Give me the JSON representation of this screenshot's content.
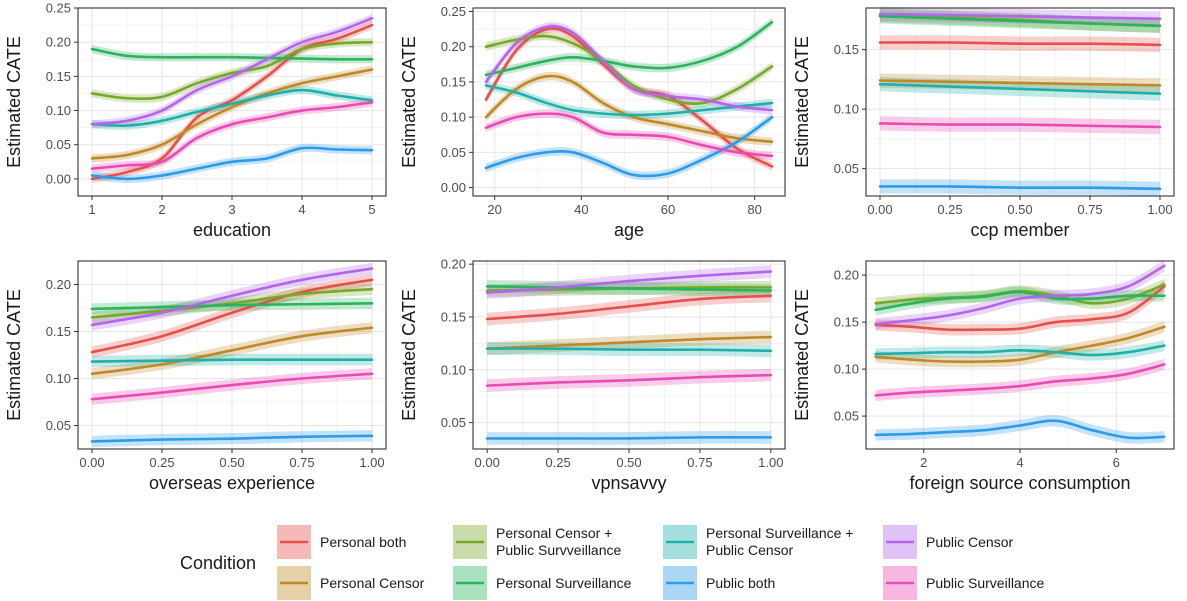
{
  "legend": {
    "title": "Condition",
    "entries": [
      {
        "key": "pb",
        "lines": [
          "Personal both"
        ],
        "color": "#E5514A"
      },
      {
        "key": "pc",
        "lines": [
          "Personal Censor"
        ],
        "color": "#BE8A26"
      },
      {
        "key": "pcps",
        "lines": [
          "Personal Censor +",
          "Public Survveillance"
        ],
        "color": "#77A82A"
      },
      {
        "key": "ps",
        "lines": [
          "Personal Surveillance"
        ],
        "color": "#2BB35E"
      },
      {
        "key": "psc",
        "lines": [
          "Personal Surveillance +",
          "Public Censor"
        ],
        "color": "#1FB0A9"
      },
      {
        "key": "pub",
        "lines": [
          "Public both"
        ],
        "color": "#2C9BE8"
      },
      {
        "key": "pubc",
        "lines": [
          "Public Censor"
        ],
        "color": "#B266EA"
      },
      {
        "key": "pubs",
        "lines": [
          "Public Surveillance"
        ],
        "color": "#EA4BB3"
      }
    ]
  },
  "chart_data": [
    {
      "type": "line",
      "xlabel": "education",
      "ylabel": "Estimated CATE",
      "xlim": [
        0.8,
        5.2
      ],
      "ylim": [
        -0.025,
        0.25
      ],
      "xticks": [
        1,
        2,
        3,
        4,
        5
      ],
      "yticks": [
        0.0,
        0.05,
        0.1,
        0.15,
        0.2,
        0.25
      ],
      "yticklabels": [
        "0.00",
        "0.05",
        "0.10",
        "0.15",
        "0.20",
        "0.25"
      ],
      "xticklabels": [
        "1",
        "2",
        "3",
        "4",
        "5"
      ],
      "x": [
        1,
        1.5,
        2,
        2.5,
        3,
        3.5,
        4,
        4.5,
        5
      ],
      "series": [
        {
          "key": "pb",
          "values": [
            0.0,
            0.01,
            0.03,
            0.09,
            0.115,
            0.15,
            0.19,
            0.205,
            0.225
          ]
        },
        {
          "key": "pc",
          "values": [
            0.03,
            0.035,
            0.05,
            0.08,
            0.105,
            0.125,
            0.14,
            0.15,
            0.16
          ]
        },
        {
          "key": "pcps",
          "values": [
            0.125,
            0.118,
            0.12,
            0.14,
            0.155,
            0.165,
            0.19,
            0.198,
            0.2
          ]
        },
        {
          "key": "ps",
          "values": [
            0.19,
            0.18,
            0.178,
            0.178,
            0.178,
            0.177,
            0.176,
            0.175,
            0.175
          ]
        },
        {
          "key": "psc",
          "values": [
            0.08,
            0.078,
            0.085,
            0.098,
            0.11,
            0.122,
            0.13,
            0.122,
            0.115
          ]
        },
        {
          "key": "pub",
          "values": [
            0.005,
            0.0,
            0.005,
            0.015,
            0.025,
            0.03,
            0.045,
            0.043,
            0.042
          ]
        },
        {
          "key": "pubc",
          "values": [
            0.08,
            0.085,
            0.1,
            0.13,
            0.15,
            0.175,
            0.2,
            0.215,
            0.235
          ]
        },
        {
          "key": "pubs",
          "values": [
            0.015,
            0.02,
            0.025,
            0.06,
            0.08,
            0.09,
            0.1,
            0.105,
            0.112
          ]
        }
      ]
    },
    {
      "type": "line",
      "xlabel": "age",
      "ylabel": "Estimated CATE",
      "xlim": [
        15,
        87
      ],
      "ylim": [
        -0.012,
        0.255
      ],
      "xticks": [
        20,
        40,
        60,
        80
      ],
      "yticks": [
        0.0,
        0.05,
        0.1,
        0.15,
        0.2,
        0.25
      ],
      "yticklabels": [
        "0.00",
        "0.05",
        "0.10",
        "0.15",
        "0.20",
        "0.25"
      ],
      "xticklabels": [
        "20",
        "40",
        "60",
        "80"
      ],
      "x": [
        18,
        25,
        32,
        38,
        45,
        52,
        60,
        68,
        76,
        84
      ],
      "series": [
        {
          "key": "pb",
          "values": [
            0.125,
            0.195,
            0.225,
            0.215,
            0.175,
            0.14,
            0.13,
            0.095,
            0.055,
            0.03
          ]
        },
        {
          "key": "pc",
          "values": [
            0.1,
            0.14,
            0.158,
            0.15,
            0.12,
            0.1,
            0.09,
            0.08,
            0.07,
            0.065
          ]
        },
        {
          "key": "pcps",
          "values": [
            0.2,
            0.21,
            0.215,
            0.205,
            0.18,
            0.145,
            0.125,
            0.12,
            0.14,
            0.172
          ]
        },
        {
          "key": "ps",
          "values": [
            0.16,
            0.17,
            0.18,
            0.185,
            0.18,
            0.172,
            0.17,
            0.18,
            0.2,
            0.235
          ]
        },
        {
          "key": "psc",
          "values": [
            0.145,
            0.135,
            0.12,
            0.11,
            0.105,
            0.103,
            0.105,
            0.11,
            0.115,
            0.12
          ]
        },
        {
          "key": "pub",
          "values": [
            0.028,
            0.042,
            0.05,
            0.05,
            0.035,
            0.018,
            0.02,
            0.04,
            0.065,
            0.1
          ]
        },
        {
          "key": "pubc",
          "values": [
            0.15,
            0.205,
            0.228,
            0.22,
            0.18,
            0.14,
            0.13,
            0.125,
            0.115,
            0.11
          ]
        },
        {
          "key": "pubs",
          "values": [
            0.085,
            0.1,
            0.105,
            0.1,
            0.078,
            0.075,
            0.072,
            0.06,
            0.05,
            0.045
          ]
        }
      ]
    },
    {
      "type": "line",
      "xlabel": "ccp member",
      "ylabel": "Estimated CATE",
      "xlim": [
        -0.05,
        1.05
      ],
      "ylim": [
        0.027,
        0.185
      ],
      "xticks": [
        0.0,
        0.25,
        0.5,
        0.75,
        1.0
      ],
      "yticks": [
        0.05,
        0.1,
        0.15
      ],
      "yticklabels": [
        "0.05",
        "0.10",
        "0.15"
      ],
      "xticklabels": [
        "0.00",
        "0.25",
        "0.50",
        "0.75",
        "1.00"
      ],
      "x": [
        0.0,
        0.25,
        0.5,
        0.75,
        1.0
      ],
      "series": [
        {
          "key": "pb",
          "values": [
            0.156,
            0.156,
            0.155,
            0.155,
            0.154
          ]
        },
        {
          "key": "pc",
          "values": [
            0.124,
            0.123,
            0.122,
            0.121,
            0.12
          ]
        },
        {
          "key": "pcps",
          "values": [
            0.179,
            0.177,
            0.175,
            0.172,
            0.17
          ]
        },
        {
          "key": "ps",
          "values": [
            0.178,
            0.176,
            0.174,
            0.172,
            0.17
          ]
        },
        {
          "key": "psc",
          "values": [
            0.121,
            0.119,
            0.117,
            0.115,
            0.113
          ]
        },
        {
          "key": "pub",
          "values": [
            0.035,
            0.035,
            0.034,
            0.034,
            0.033
          ]
        },
        {
          "key": "pubc",
          "values": [
            0.18,
            0.179,
            0.178,
            0.177,
            0.176
          ]
        },
        {
          "key": "pubs",
          "values": [
            0.088,
            0.087,
            0.087,
            0.086,
            0.085
          ]
        }
      ]
    },
    {
      "type": "line",
      "xlabel": "overseas experience",
      "ylabel": "Estimated CATE",
      "xlim": [
        -0.05,
        1.05
      ],
      "ylim": [
        0.025,
        0.225
      ],
      "xticks": [
        0.0,
        0.25,
        0.5,
        0.75,
        1.0
      ],
      "yticks": [
        0.05,
        0.1,
        0.15,
        0.2
      ],
      "yticklabels": [
        "0.05",
        "0.10",
        "0.15",
        "0.20"
      ],
      "xticklabels": [
        "0.00",
        "0.25",
        "0.50",
        "0.75",
        "1.00"
      ],
      "x": [
        0.0,
        0.25,
        0.5,
        0.75,
        1.0
      ],
      "series": [
        {
          "key": "pb",
          "values": [
            0.128,
            0.145,
            0.17,
            0.192,
            0.205
          ]
        },
        {
          "key": "pc",
          "values": [
            0.105,
            0.115,
            0.13,
            0.145,
            0.154
          ]
        },
        {
          "key": "pcps",
          "values": [
            0.165,
            0.172,
            0.18,
            0.19,
            0.195
          ]
        },
        {
          "key": "ps",
          "values": [
            0.174,
            0.176,
            0.178,
            0.179,
            0.18
          ]
        },
        {
          "key": "psc",
          "values": [
            0.118,
            0.119,
            0.12,
            0.12,
            0.12
          ]
        },
        {
          "key": "pub",
          "values": [
            0.033,
            0.035,
            0.036,
            0.038,
            0.039
          ]
        },
        {
          "key": "pubc",
          "values": [
            0.157,
            0.17,
            0.188,
            0.205,
            0.217
          ]
        },
        {
          "key": "pubs",
          "values": [
            0.078,
            0.085,
            0.093,
            0.1,
            0.105
          ]
        }
      ]
    },
    {
      "type": "line",
      "xlabel": "vpnsavvy",
      "ylabel": "Estimated CATE",
      "xlim": [
        -0.05,
        1.05
      ],
      "ylim": [
        0.025,
        0.203
      ],
      "xticks": [
        0.0,
        0.25,
        0.5,
        0.75,
        1.0
      ],
      "yticks": [
        0.05,
        0.1,
        0.15,
        0.2
      ],
      "yticklabels": [
        "0.05",
        "0.10",
        "0.15",
        "0.20"
      ],
      "xticklabels": [
        "0.00",
        "0.25",
        "0.50",
        "0.75",
        "1.00"
      ],
      "x": [
        0.0,
        0.25,
        0.5,
        0.75,
        1.0
      ],
      "series": [
        {
          "key": "pb",
          "values": [
            0.148,
            0.153,
            0.16,
            0.167,
            0.17
          ]
        },
        {
          "key": "pc",
          "values": [
            0.12,
            0.123,
            0.126,
            0.129,
            0.131
          ]
        },
        {
          "key": "pcps",
          "values": [
            0.175,
            0.176,
            0.177,
            0.178,
            0.178
          ]
        },
        {
          "key": "ps",
          "values": [
            0.179,
            0.178,
            0.177,
            0.176,
            0.175
          ]
        },
        {
          "key": "psc",
          "values": [
            0.12,
            0.12,
            0.119,
            0.119,
            0.118
          ]
        },
        {
          "key": "pub",
          "values": [
            0.035,
            0.035,
            0.035,
            0.036,
            0.036
          ]
        },
        {
          "key": "pubc",
          "values": [
            0.173,
            0.178,
            0.184,
            0.189,
            0.193
          ]
        },
        {
          "key": "pubs",
          "values": [
            0.085,
            0.088,
            0.09,
            0.093,
            0.095
          ]
        }
      ]
    },
    {
      "type": "line",
      "xlabel": "foreign source consumption",
      "ylabel": "Estimated CATE",
      "xlim": [
        0.8,
        7.2
      ],
      "ylim": [
        0.015,
        0.215
      ],
      "xticks": [
        2,
        4,
        6
      ],
      "yticks": [
        0.05,
        0.1,
        0.15,
        0.2
      ],
      "yticklabels": [
        "0.05",
        "0.10",
        "0.15",
        "0.20"
      ],
      "xticklabels": [
        "2",
        "4",
        "6"
      ],
      "x": [
        1,
        1.75,
        2.5,
        3.25,
        4,
        4.75,
        5.5,
        6.25,
        7
      ],
      "series": [
        {
          "key": "pb",
          "values": [
            0.147,
            0.145,
            0.142,
            0.142,
            0.143,
            0.15,
            0.153,
            0.16,
            0.188
          ]
        },
        {
          "key": "pc",
          "values": [
            0.113,
            0.11,
            0.108,
            0.108,
            0.11,
            0.118,
            0.125,
            0.133,
            0.145
          ]
        },
        {
          "key": "pcps",
          "values": [
            0.17,
            0.174,
            0.176,
            0.178,
            0.183,
            0.178,
            0.17,
            0.175,
            0.19
          ]
        },
        {
          "key": "ps",
          "values": [
            0.163,
            0.17,
            0.175,
            0.177,
            0.182,
            0.175,
            0.175,
            0.178,
            0.178
          ]
        },
        {
          "key": "psc",
          "values": [
            0.116,
            0.117,
            0.118,
            0.118,
            0.12,
            0.118,
            0.115,
            0.118,
            0.125
          ]
        },
        {
          "key": "pub",
          "values": [
            0.03,
            0.031,
            0.033,
            0.035,
            0.04,
            0.045,
            0.035,
            0.027,
            0.028
          ]
        },
        {
          "key": "pubc",
          "values": [
            0.148,
            0.152,
            0.157,
            0.165,
            0.175,
            0.178,
            0.18,
            0.188,
            0.21
          ]
        },
        {
          "key": "pubs",
          "values": [
            0.072,
            0.075,
            0.077,
            0.079,
            0.082,
            0.087,
            0.09,
            0.095,
            0.105
          ]
        }
      ]
    }
  ]
}
